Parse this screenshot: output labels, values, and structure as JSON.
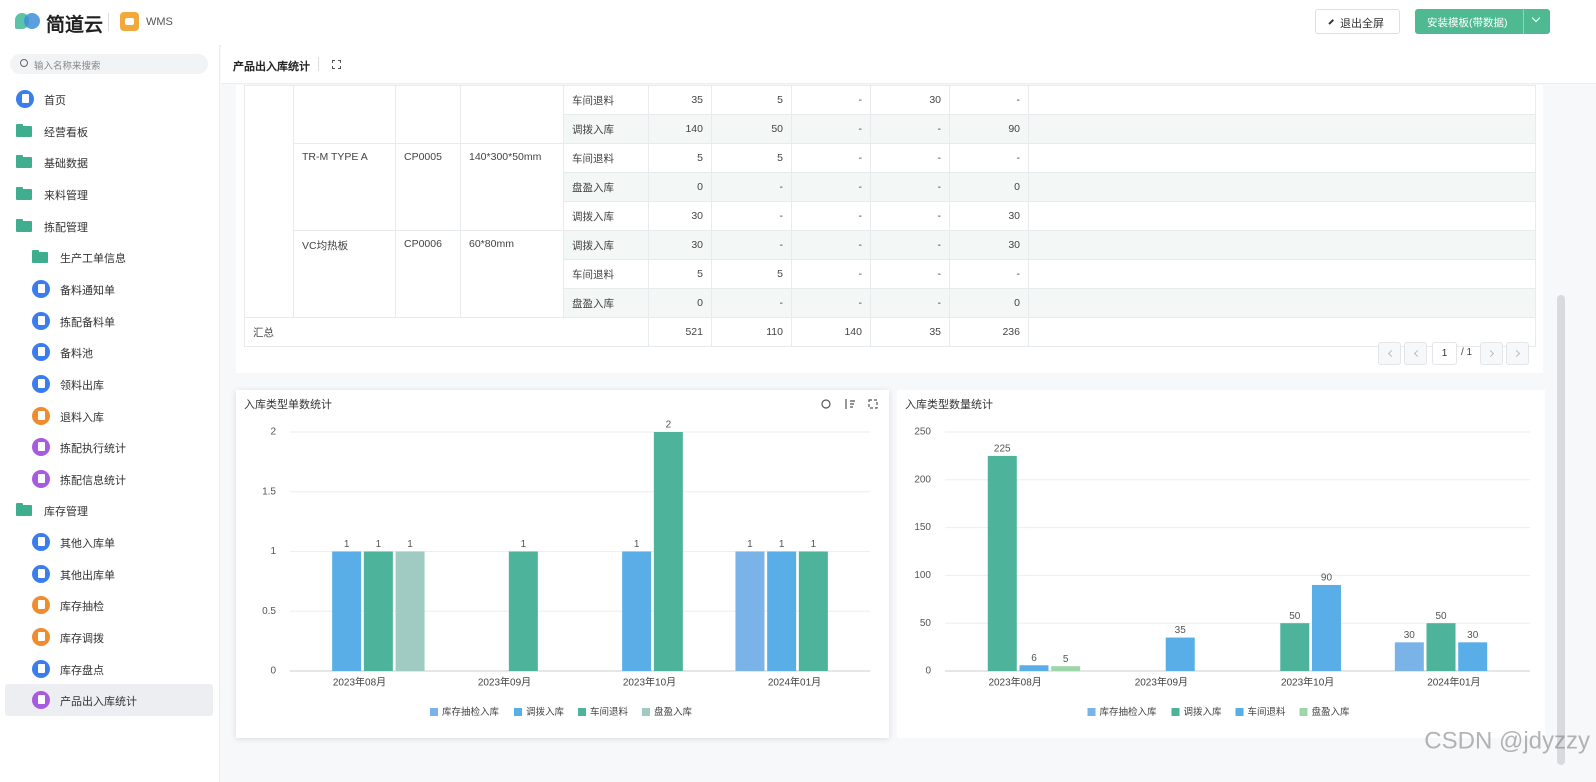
{
  "header": {
    "logo": "简道云",
    "app": "WMS",
    "exit_button": "退出全屏",
    "install_button": "安装模板(带数据)"
  },
  "sidebar": {
    "search_placeholder": "输入名称来搜索",
    "items": [
      {
        "label": "首页",
        "level": 0,
        "icon": "circle",
        "color": "#3b7ded"
      },
      {
        "label": "经营看板",
        "level": 0,
        "icon": "folder",
        "color": "#3fae8f"
      },
      {
        "label": "基础数据",
        "level": 0,
        "icon": "folder",
        "color": "#3fae8f"
      },
      {
        "label": "来料管理",
        "level": 0,
        "icon": "folder",
        "color": "#3fae8f"
      },
      {
        "label": "拣配管理",
        "level": 0,
        "icon": "folder",
        "color": "#3fae8f"
      },
      {
        "label": "生产工单信息",
        "level": 1,
        "icon": "folder",
        "color": "#3fae8f"
      },
      {
        "label": "备料通知单",
        "level": 1,
        "icon": "circle",
        "color": "#3b7ded"
      },
      {
        "label": "拣配备料单",
        "level": 1,
        "icon": "circle",
        "color": "#3b7ded"
      },
      {
        "label": "备料池",
        "level": 1,
        "icon": "circle",
        "color": "#3b7ded"
      },
      {
        "label": "领料出库",
        "level": 1,
        "icon": "circle",
        "color": "#3b7ded"
      },
      {
        "label": "退料入库",
        "level": 1,
        "icon": "circle",
        "color": "#f08c2e"
      },
      {
        "label": "拣配执行统计",
        "level": 1,
        "icon": "circle",
        "color": "#a75be0"
      },
      {
        "label": "拣配信息统计",
        "level": 1,
        "icon": "circle",
        "color": "#a75be0"
      },
      {
        "label": "库存管理",
        "level": 0,
        "icon": "folder",
        "color": "#3fae8f"
      },
      {
        "label": "其他入库单",
        "level": 1,
        "icon": "circle",
        "color": "#3b7ded"
      },
      {
        "label": "其他出库单",
        "level": 1,
        "icon": "circle",
        "color": "#3b7ded"
      },
      {
        "label": "库存抽检",
        "level": 1,
        "icon": "circle",
        "color": "#f08c2e"
      },
      {
        "label": "库存调拨",
        "level": 1,
        "icon": "circle",
        "color": "#f08c2e"
      },
      {
        "label": "库存盘点",
        "level": 1,
        "icon": "circle",
        "color": "#3b7ded"
      },
      {
        "label": "产品出入库统计",
        "level": 1,
        "icon": "circle",
        "color": "#a75be0",
        "active": true
      }
    ]
  },
  "page_title": "产品出入库统计",
  "table": {
    "groups": [
      {
        "entries": [
          [
            "车间退料",
            35,
            5,
            "-",
            30,
            "-"
          ],
          [
            "调拨入库",
            140,
            50,
            "-",
            "-",
            90
          ]
        ]
      },
      {
        "name": "TR-M TYPE A",
        "code": "CP0005",
        "spec": "140*300*50mm",
        "entries": [
          [
            "车间退料",
            5,
            5,
            "-",
            "-",
            "-"
          ],
          [
            "盘盈入库",
            0,
            "-",
            "-",
            "-",
            0
          ],
          [
            "调拨入库",
            30,
            "-",
            "-",
            "-",
            30
          ]
        ]
      },
      {
        "name": "VC均热板",
        "code": "CP0006",
        "spec": "60*80mm",
        "entries": [
          [
            "调拨入库",
            30,
            "-",
            "-",
            "-",
            30
          ],
          [
            "车间退料",
            5,
            5,
            "-",
            "-",
            "-"
          ],
          [
            "盘盈入库",
            0,
            "-",
            "-",
            "-",
            0
          ]
        ]
      }
    ],
    "total": {
      "label": "汇总",
      "values": [
        521,
        110,
        140,
        35,
        236
      ]
    }
  },
  "pagination": {
    "page": 1,
    "total": "/ 1"
  },
  "chart_data": [
    {
      "type": "bar",
      "title": "入库类型单数统计",
      "categories": [
        "2023年08月",
        "2023年09月",
        "2023年10月",
        "2024年01月"
      ],
      "series": [
        {
          "name": "库存抽检入库",
          "color": "#7ab3e8",
          "values": [
            null,
            null,
            null,
            1
          ]
        },
        {
          "name": "调拨入库",
          "color": "#5aaee8",
          "values": [
            1,
            null,
            1,
            1
          ]
        },
        {
          "name": "车间退料",
          "color": "#4db39a",
          "values": [
            1,
            1,
            2,
            1
          ]
        },
        {
          "name": "盘盈入库",
          "color": "#9fcbc3",
          "values": [
            1,
            null,
            null,
            null
          ]
        }
      ],
      "ylim": [
        0,
        2
      ],
      "yticks": [
        0,
        0.5,
        1,
        1.5,
        2
      ],
      "grid": true
    },
    {
      "type": "bar",
      "title": "入库类型数量统计",
      "categories": [
        "2023年08月",
        "2023年09月",
        "2023年10月",
        "2024年01月"
      ],
      "series": [
        {
          "name": "库存抽检入库",
          "color": "#7ab3e8",
          "values": [
            null,
            null,
            null,
            30
          ]
        },
        {
          "name": "调拨入库",
          "color": "#4db39a",
          "values": [
            225,
            null,
            50,
            50
          ]
        },
        {
          "name": "车间退料",
          "color": "#5aaee8",
          "values": [
            6,
            35,
            90,
            30
          ]
        },
        {
          "name": "盘盈入库",
          "color": "#9dd6a8",
          "values": [
            5,
            null,
            null,
            null
          ]
        }
      ],
      "ylim": [
        0,
        250
      ],
      "yticks": [
        0,
        50,
        100,
        150,
        200,
        250
      ],
      "grid": true
    }
  ],
  "watermark": "CSDN @jdyzzy"
}
